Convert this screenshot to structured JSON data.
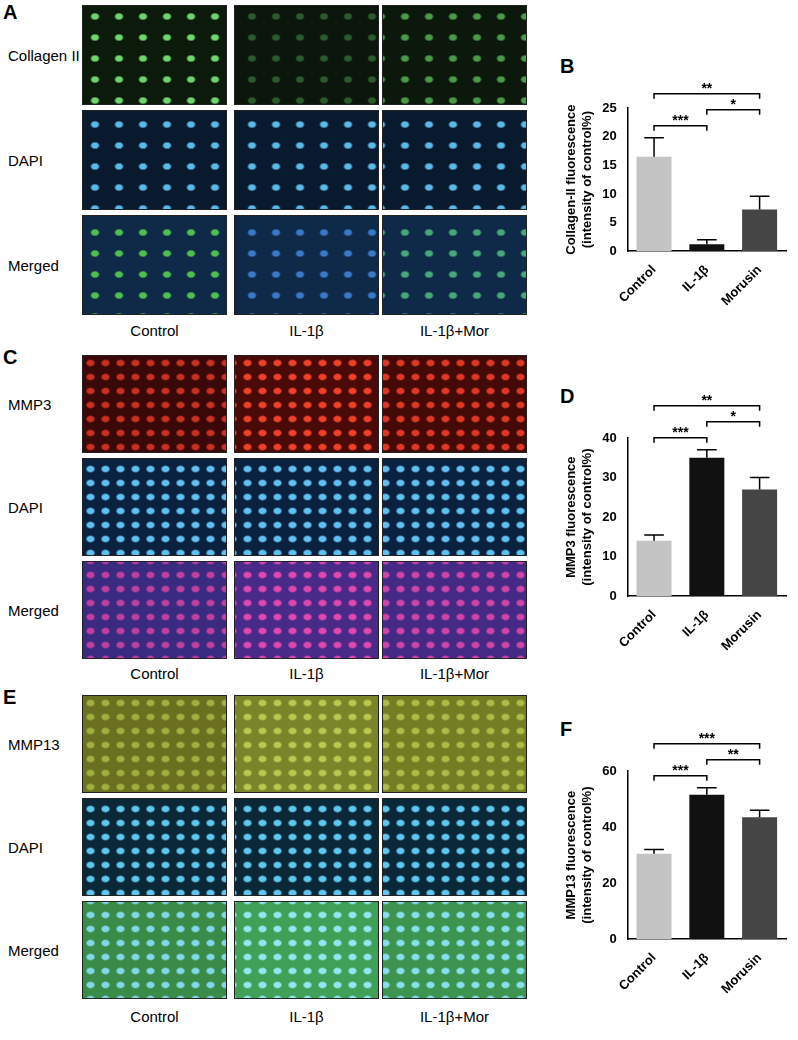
{
  "figure": {
    "image_panels": [
      {
        "letter": "A",
        "rows": [
          "Collagen II",
          "DAPI",
          "Merged"
        ],
        "columns": [
          "Control",
          "IL-1β",
          "IL-1β+Mor"
        ]
      },
      {
        "letter": "C",
        "rows": [
          "MMP3",
          "DAPI",
          "Merged"
        ],
        "columns": [
          "Control",
          "IL-1β",
          "IL-1β+Mor"
        ]
      },
      {
        "letter": "E",
        "rows": [
          "MMP13",
          "DAPI",
          "Merged"
        ],
        "columns": [
          "Control",
          "IL-1β",
          "IL-1β+Mor"
        ]
      }
    ]
  },
  "chart_data": [
    {
      "letter": "B",
      "type": "bar",
      "y_label": [
        "Collagen-II fluorescence",
        "(intensity of control%)"
      ],
      "categories": [
        "Control",
        "IL-1β",
        "Morusin"
      ],
      "values": [
        16.5,
        1.2,
        7.3
      ],
      "errors": [
        3.3,
        0.8,
        2.3
      ],
      "colors": [
        "#c4c4c4",
        "#111111",
        "#454545"
      ],
      "ylim": [
        0,
        25
      ],
      "yticks": [
        0,
        5,
        10,
        15,
        20,
        25
      ],
      "grid": false,
      "significance": [
        {
          "from": "Control",
          "to": "IL-1β",
          "label": "***"
        },
        {
          "from": "Control",
          "to": "Morusin",
          "label": "**"
        },
        {
          "from": "IL-1β",
          "to": "Morusin",
          "label": "*"
        }
      ]
    },
    {
      "letter": "D",
      "type": "bar",
      "y_label": [
        "MMP3 fluorescence",
        "(intensity of control%)"
      ],
      "categories": [
        "Control",
        "IL-1β",
        "Morusin"
      ],
      "values": [
        14,
        35,
        27
      ],
      "errors": [
        1.5,
        2,
        3
      ],
      "colors": [
        "#c4c4c4",
        "#111111",
        "#454545"
      ],
      "ylim": [
        0,
        40
      ],
      "yticks": [
        0,
        10,
        20,
        30,
        40
      ],
      "grid": false,
      "significance": [
        {
          "from": "Control",
          "to": "IL-1β",
          "label": "***"
        },
        {
          "from": "Control",
          "to": "Morusin",
          "label": "**"
        },
        {
          "from": "IL-1β",
          "to": "Morusin",
          "label": "*"
        }
      ]
    },
    {
      "letter": "F",
      "type": "bar",
      "y_label": [
        "MMP13 fluorescence",
        "(intensity of control%)"
      ],
      "categories": [
        "Control",
        "IL-1β",
        "Morusin"
      ],
      "values": [
        30.5,
        51.5,
        43.5
      ],
      "errors": [
        1.5,
        2.5,
        2.5
      ],
      "colors": [
        "#c4c4c4",
        "#111111",
        "#454545"
      ],
      "ylim": [
        0,
        60
      ],
      "yticks": [
        0,
        20,
        40,
        60
      ],
      "grid": false,
      "significance": [
        {
          "from": "Control",
          "to": "IL-1β",
          "label": "***"
        },
        {
          "from": "Control",
          "to": "Morusin",
          "label": "***"
        },
        {
          "from": "IL-1β",
          "to": "Morusin",
          "label": "**"
        }
      ]
    }
  ]
}
